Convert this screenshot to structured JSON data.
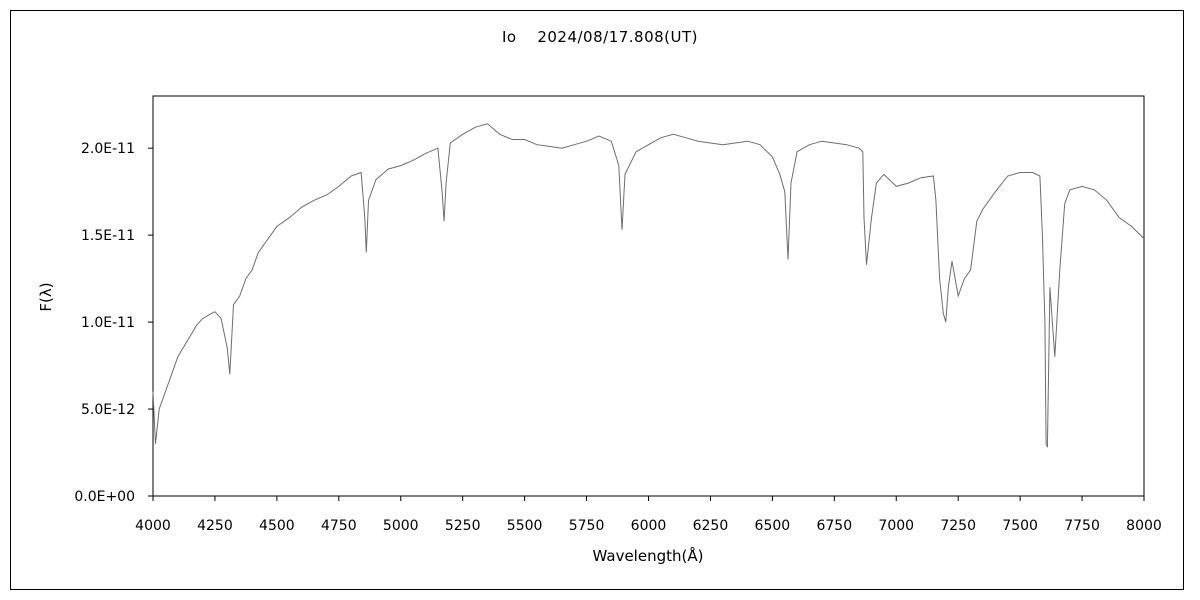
{
  "chart_data": {
    "type": "line",
    "title": "Io　 2024/08/17.808(UT)",
    "xlabel": "Wavelength(Å)",
    "ylabel": "F(λ)",
    "xlim": [
      4000,
      8000
    ],
    "ylim": [
      0,
      2.3e-11
    ],
    "x_ticks": [
      4000,
      4250,
      4500,
      4750,
      5000,
      5250,
      5500,
      5750,
      6000,
      6250,
      6500,
      6750,
      7000,
      7250,
      7500,
      7750,
      8000
    ],
    "x_tick_labels": [
      "4000",
      "4250",
      "4500",
      "4750",
      "5000",
      "5250",
      "5500",
      "5750",
      "6000",
      "6250",
      "6500",
      "6750",
      "7000",
      "7250",
      "7500",
      "7750",
      "8000"
    ],
    "y_ticks": [
      0,
      5e-12,
      1e-11,
      1.5e-11,
      2e-11
    ],
    "y_tick_labels": [
      "0.0E+00",
      "5.0E-12",
      "1.0E-11",
      "1.5E-11",
      "2.0E-11"
    ],
    "grid": false,
    "legend": "none",
    "line_color": "#6e6e6e",
    "series": [
      {
        "x": [
          4000,
          4010,
          4025,
          4050,
          4075,
          4100,
          4125,
          4150,
          4175,
          4200,
          4225,
          4250,
          4275,
          4300,
          4310,
          4325,
          4350,
          4375,
          4400,
          4425,
          4450,
          4475,
          4500,
          4550,
          4600,
          4650,
          4700,
          4750,
          4800,
          4840,
          4855,
          4861,
          4870,
          4900,
          4950,
          5000,
          5050,
          5100,
          5150,
          5167,
          5175,
          5183,
          5200,
          5250,
          5300,
          5350,
          5400,
          5450,
          5500,
          5550,
          5600,
          5650,
          5700,
          5750,
          5800,
          5850,
          5880,
          5893,
          5905,
          5950,
          6000,
          6050,
          6100,
          6150,
          6200,
          6250,
          6300,
          6350,
          6400,
          6450,
          6500,
          6530,
          6550,
          6563,
          6575,
          6600,
          6650,
          6700,
          6750,
          6800,
          6850,
          6865,
          6870,
          6880,
          6900,
          6920,
          6950,
          7000,
          7050,
          7100,
          7150,
          7160,
          7175,
          7190,
          7200,
          7210,
          7225,
          7250,
          7275,
          7300,
          7325,
          7350,
          7400,
          7450,
          7500,
          7550,
          7580,
          7590,
          7600,
          7605,
          7610,
          7620,
          7640,
          7660,
          7680,
          7700,
          7750,
          7800,
          7850,
          7900,
          7950,
          8000
        ],
        "y": [
          6e-12,
          3e-12,
          5e-12,
          6e-12,
          7e-12,
          8e-12,
          8.6e-12,
          9.2e-12,
          9.8e-12,
          1.02e-11,
          1.04e-11,
          1.06e-11,
          1.02e-11,
          8.5e-12,
          7e-12,
          1.1e-11,
          1.15e-11,
          1.25e-11,
          1.3e-11,
          1.4e-11,
          1.45e-11,
          1.5e-11,
          1.55e-11,
          1.6e-11,
          1.66e-11,
          1.7e-11,
          1.73e-11,
          1.78e-11,
          1.84e-11,
          1.86e-11,
          1.6e-11,
          1.4e-11,
          1.7e-11,
          1.82e-11,
          1.88e-11,
          1.9e-11,
          1.93e-11,
          1.97e-11,
          2e-11,
          1.75e-11,
          1.58e-11,
          1.8e-11,
          2.03e-11,
          2.08e-11,
          2.12e-11,
          2.14e-11,
          2.08e-11,
          2.05e-11,
          2.05e-11,
          2.02e-11,
          2.01e-11,
          2e-11,
          2.02e-11,
          2.04e-11,
          2.07e-11,
          2.04e-11,
          1.9e-11,
          1.53e-11,
          1.85e-11,
          1.98e-11,
          2.02e-11,
          2.06e-11,
          2.08e-11,
          2.06e-11,
          2.04e-11,
          2.03e-11,
          2.02e-11,
          2.03e-11,
          2.04e-11,
          2.02e-11,
          1.95e-11,
          1.85e-11,
          1.75e-11,
          1.36e-11,
          1.8e-11,
          1.98e-11,
          2.02e-11,
          2.04e-11,
          2.03e-11,
          2.02e-11,
          2e-11,
          1.98e-11,
          1.6e-11,
          1.33e-11,
          1.6e-11,
          1.8e-11,
          1.85e-11,
          1.78e-11,
          1.8e-11,
          1.83e-11,
          1.84e-11,
          1.7e-11,
          1.25e-11,
          1.05e-11,
          1e-11,
          1.2e-11,
          1.35e-11,
          1.15e-11,
          1.25e-11,
          1.3e-11,
          1.58e-11,
          1.65e-11,
          1.75e-11,
          1.84e-11,
          1.86e-11,
          1.86e-11,
          1.84e-11,
          1.5e-11,
          1e-11,
          3e-12,
          2.8e-12,
          1.2e-11,
          8e-12,
          1.3e-11,
          1.68e-11,
          1.76e-11,
          1.78e-11,
          1.76e-11,
          1.7e-11,
          1.6e-11,
          1.55e-11,
          1.48e-11
        ]
      }
    ]
  }
}
